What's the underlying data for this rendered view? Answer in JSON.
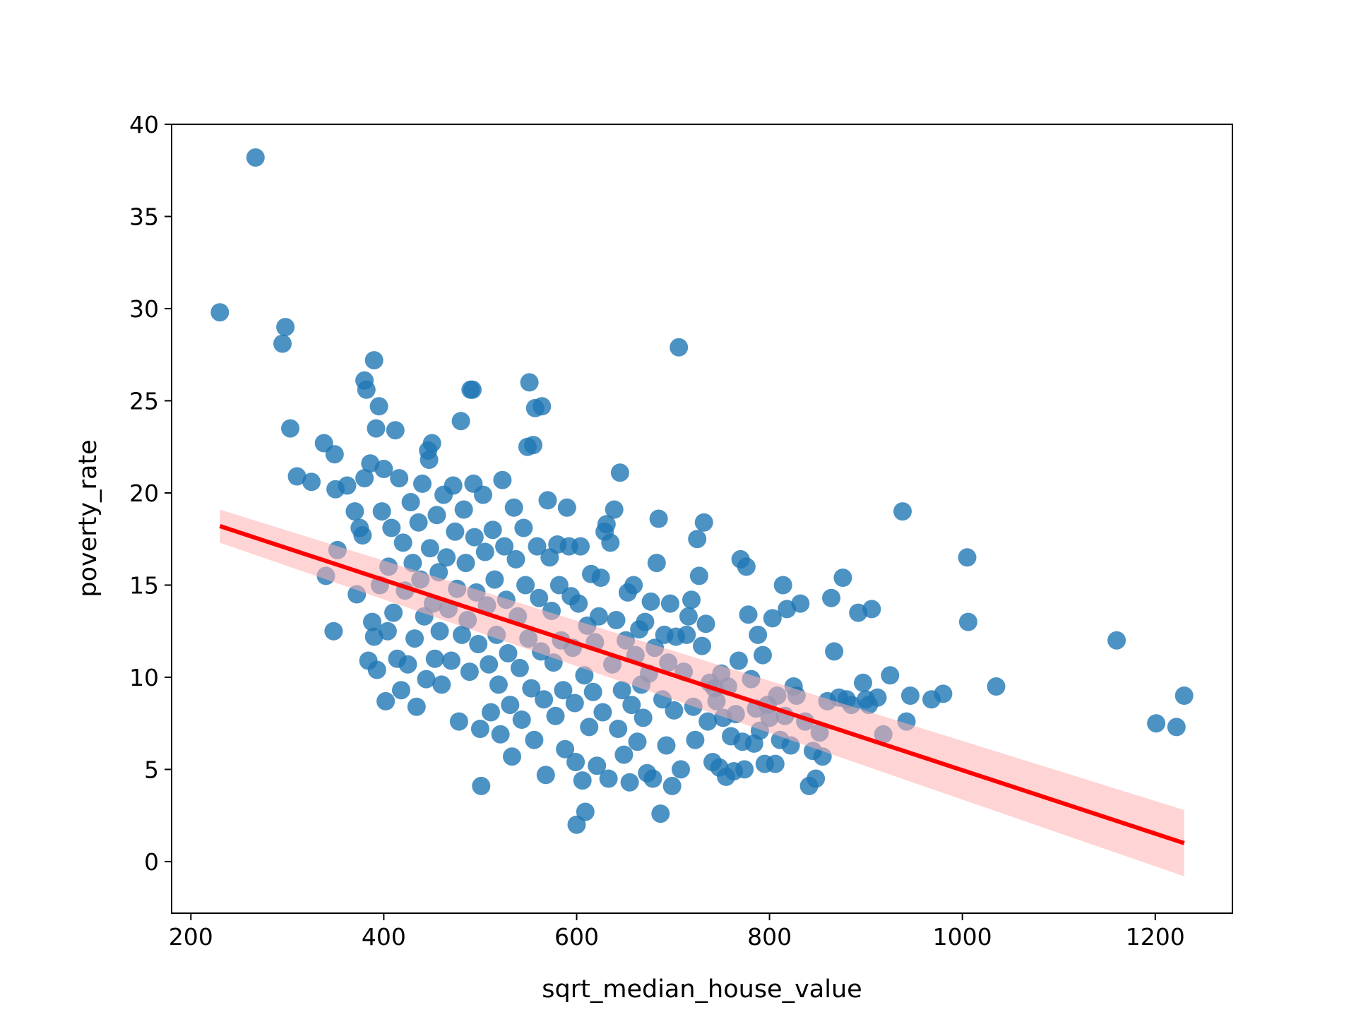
{
  "chart_data": {
    "type": "scatter",
    "title": "",
    "xlabel": "sqrt_median_house_value",
    "ylabel": "poverty_rate",
    "xlim": [
      180,
      1280
    ],
    "ylim": [
      -2.8,
      40
    ],
    "xticks": [
      200,
      400,
      600,
      800,
      1000,
      1200
    ],
    "yticks": [
      0,
      5,
      10,
      15,
      20,
      25,
      30,
      35,
      40
    ],
    "grid": false,
    "legend": "none",
    "colors": {
      "points": "#1f77b4",
      "regression_line": "#ff0000",
      "confidence_band": "#ffb0b0"
    },
    "regression": {
      "x": [
        230,
        1230
      ],
      "y": [
        18.2,
        1.0
      ],
      "ci_lower": [
        17.3,
        -0.8
      ],
      "ci_upper": [
        19.1,
        2.8
      ]
    },
    "points": [
      [
        230,
        29.8
      ],
      [
        267,
        38.2
      ],
      [
        295,
        28.1
      ],
      [
        298,
        29.0
      ],
      [
        303,
        23.5
      ],
      [
        310,
        20.9
      ],
      [
        325,
        20.6
      ],
      [
        338,
        22.7
      ],
      [
        340,
        15.5
      ],
      [
        348,
        12.5
      ],
      [
        349,
        22.1
      ],
      [
        350,
        20.2
      ],
      [
        352,
        16.9
      ],
      [
        362,
        20.4
      ],
      [
        370,
        19.0
      ],
      [
        372,
        14.5
      ],
      [
        375,
        18.1
      ],
      [
        378,
        17.7
      ],
      [
        380,
        26.1
      ],
      [
        380,
        20.8
      ],
      [
        382,
        25.6
      ],
      [
        384,
        10.9
      ],
      [
        386,
        21.6
      ],
      [
        388,
        13.0
      ],
      [
        390,
        27.2
      ],
      [
        390,
        12.2
      ],
      [
        392,
        23.5
      ],
      [
        393,
        10.4
      ],
      [
        395,
        24.7
      ],
      [
        396,
        15.0
      ],
      [
        398,
        19.0
      ],
      [
        400,
        21.3
      ],
      [
        402,
        8.7
      ],
      [
        404,
        12.5
      ],
      [
        405,
        16.0
      ],
      [
        408,
        18.1
      ],
      [
        410,
        13.5
      ],
      [
        412,
        23.4
      ],
      [
        414,
        11.0
      ],
      [
        416,
        20.8
      ],
      [
        418,
        9.3
      ],
      [
        420,
        17.3
      ],
      [
        422,
        14.7
      ],
      [
        425,
        10.7
      ],
      [
        428,
        19.5
      ],
      [
        430,
        16.2
      ],
      [
        432,
        12.1
      ],
      [
        434,
        8.4
      ],
      [
        436,
        18.4
      ],
      [
        438,
        15.3
      ],
      [
        440,
        20.5
      ],
      [
        442,
        13.3
      ],
      [
        444,
        9.9
      ],
      [
        446,
        22.3
      ],
      [
        447,
        21.8
      ],
      [
        448,
        17.0
      ],
      [
        450,
        22.7
      ],
      [
        451,
        14.0
      ],
      [
        453,
        11.0
      ],
      [
        455,
        18.8
      ],
      [
        457,
        15.7
      ],
      [
        458,
        12.5
      ],
      [
        460,
        9.6
      ],
      [
        462,
        19.9
      ],
      [
        465,
        16.5
      ],
      [
        467,
        13.7
      ],
      [
        470,
        10.9
      ],
      [
        472,
        20.4
      ],
      [
        474,
        17.9
      ],
      [
        476,
        14.8
      ],
      [
        478,
        7.6
      ],
      [
        480,
        23.9
      ],
      [
        481,
        12.3
      ],
      [
        483,
        19.1
      ],
      [
        485,
        16.2
      ],
      [
        487,
        13.1
      ],
      [
        489,
        10.3
      ],
      [
        490,
        25.6
      ],
      [
        492,
        25.6
      ],
      [
        493,
        20.5
      ],
      [
        494,
        17.6
      ],
      [
        496,
        14.6
      ],
      [
        498,
        11.8
      ],
      [
        500,
        7.2
      ],
      [
        501,
        4.1
      ],
      [
        503,
        19.9
      ],
      [
        505,
        16.8
      ],
      [
        507,
        13.9
      ],
      [
        509,
        10.7
      ],
      [
        511,
        8.1
      ],
      [
        513,
        18.0
      ],
      [
        515,
        15.3
      ],
      [
        517,
        12.3
      ],
      [
        519,
        9.6
      ],
      [
        521,
        6.9
      ],
      [
        523,
        20.7
      ],
      [
        525,
        17.1
      ],
      [
        527,
        14.2
      ],
      [
        529,
        11.3
      ],
      [
        531,
        8.5
      ],
      [
        533,
        5.7
      ],
      [
        535,
        19.2
      ],
      [
        537,
        16.4
      ],
      [
        539,
        13.3
      ],
      [
        541,
        10.5
      ],
      [
        543,
        7.7
      ],
      [
        545,
        18.1
      ],
      [
        547,
        15.0
      ],
      [
        549,
        22.5
      ],
      [
        550,
        12.1
      ],
      [
        551,
        26.0
      ],
      [
        553,
        9.4
      ],
      [
        555,
        22.6
      ],
      [
        556,
        6.6
      ],
      [
        557,
        24.6
      ],
      [
        559,
        17.1
      ],
      [
        561,
        14.3
      ],
      [
        563,
        11.4
      ],
      [
        564,
        24.7
      ],
      [
        566,
        8.8
      ],
      [
        568,
        4.7
      ],
      [
        570,
        19.6
      ],
      [
        572,
        16.5
      ],
      [
        574,
        13.6
      ],
      [
        576,
        10.8
      ],
      [
        578,
        7.9
      ],
      [
        580,
        17.2
      ],
      [
        582,
        15.0
      ],
      [
        584,
        12.0
      ],
      [
        586,
        9.3
      ],
      [
        588,
        6.1
      ],
      [
        590,
        19.2
      ],
      [
        592,
        17.1
      ],
      [
        594,
        14.4
      ],
      [
        596,
        11.6
      ],
      [
        598,
        8.6
      ],
      [
        599,
        5.4
      ],
      [
        600,
        2.0
      ],
      [
        602,
        14.0
      ],
      [
        604,
        17.1
      ],
      [
        606,
        4.4
      ],
      [
        608,
        10.1
      ],
      [
        609,
        2.7
      ],
      [
        611,
        12.8
      ],
      [
        613,
        7.3
      ],
      [
        615,
        15.6
      ],
      [
        617,
        9.2
      ],
      [
        619,
        11.9
      ],
      [
        621,
        5.2
      ],
      [
        623,
        13.3
      ],
      [
        625,
        15.4
      ],
      [
        627,
        8.1
      ],
      [
        629,
        17.9
      ],
      [
        631,
        18.3
      ],
      [
        633,
        4.5
      ],
      [
        635,
        17.3
      ],
      [
        637,
        10.7
      ],
      [
        639,
        19.1
      ],
      [
        641,
        13.1
      ],
      [
        643,
        7.2
      ],
      [
        645,
        21.1
      ],
      [
        647,
        9.3
      ],
      [
        649,
        5.8
      ],
      [
        651,
        12.0
      ],
      [
        653,
        14.6
      ],
      [
        655,
        4.3
      ],
      [
        657,
        8.5
      ],
      [
        659,
        15.0
      ],
      [
        661,
        11.2
      ],
      [
        663,
        6.5
      ],
      [
        665,
        12.6
      ],
      [
        667,
        9.6
      ],
      [
        669,
        7.8
      ],
      [
        671,
        13.0
      ],
      [
        673,
        4.8
      ],
      [
        675,
        10.2
      ],
      [
        677,
        14.1
      ],
      [
        679,
        4.5
      ],
      [
        681,
        11.6
      ],
      [
        683,
        16.2
      ],
      [
        685,
        18.6
      ],
      [
        687,
        2.6
      ],
      [
        689,
        8.8
      ],
      [
        691,
        12.3
      ],
      [
        693,
        6.3
      ],
      [
        695,
        10.8
      ],
      [
        697,
        14.0
      ],
      [
        699,
        4.1
      ],
      [
        701,
        8.2
      ],
      [
        703,
        12.2
      ],
      [
        706,
        27.9
      ],
      [
        708,
        5.0
      ],
      [
        711,
        10.3
      ],
      [
        714,
        12.3
      ],
      [
        716,
        13.3
      ],
      [
        719,
        14.2
      ],
      [
        721,
        8.4
      ],
      [
        723,
        6.6
      ],
      [
        725,
        17.5
      ],
      [
        727,
        15.5
      ],
      [
        730,
        11.7
      ],
      [
        732,
        18.4
      ],
      [
        734,
        12.9
      ],
      [
        736,
        7.6
      ],
      [
        738,
        9.7
      ],
      [
        741,
        5.4
      ],
      [
        743,
        9.4
      ],
      [
        745,
        8.7
      ],
      [
        748,
        5.1
      ],
      [
        750,
        10.2
      ],
      [
        752,
        7.8
      ],
      [
        755,
        4.6
      ],
      [
        757,
        9.5
      ],
      [
        760,
        6.8
      ],
      [
        763,
        4.9
      ],
      [
        765,
        8.0
      ],
      [
        768,
        10.9
      ],
      [
        770,
        16.4
      ],
      [
        772,
        6.5
      ],
      [
        774,
        5.0
      ],
      [
        776,
        16.0
      ],
      [
        778,
        13.4
      ],
      [
        781,
        9.9
      ],
      [
        784,
        6.4
      ],
      [
        786,
        8.3
      ],
      [
        788,
        12.3
      ],
      [
        790,
        7.1
      ],
      [
        793,
        11.2
      ],
      [
        795,
        5.3
      ],
      [
        798,
        8.5
      ],
      [
        800,
        7.8
      ],
      [
        803,
        13.2
      ],
      [
        806,
        5.3
      ],
      [
        808,
        9.0
      ],
      [
        811,
        6.6
      ],
      [
        814,
        15.0
      ],
      [
        816,
        7.9
      ],
      [
        818,
        13.7
      ],
      [
        822,
        6.3
      ],
      [
        825,
        9.5
      ],
      [
        828,
        9.0
      ],
      [
        832,
        14.0
      ],
      [
        837,
        7.6
      ],
      [
        841,
        4.1
      ],
      [
        845,
        6.0
      ],
      [
        848,
        4.5
      ],
      [
        852,
        7.0
      ],
      [
        855,
        5.7
      ],
      [
        860,
        8.7
      ],
      [
        864,
        14.3
      ],
      [
        867,
        11.4
      ],
      [
        872,
        8.9
      ],
      [
        876,
        15.4
      ],
      [
        880,
        8.8
      ],
      [
        885,
        8.5
      ],
      [
        892,
        13.5
      ],
      [
        897,
        9.7
      ],
      [
        900,
        8.8
      ],
      [
        903,
        8.5
      ],
      [
        906,
        13.7
      ],
      [
        912,
        8.9
      ],
      [
        918,
        6.9
      ],
      [
        925,
        10.1
      ],
      [
        938,
        19.0
      ],
      [
        942,
        7.6
      ],
      [
        946,
        9.0
      ],
      [
        968,
        8.8
      ],
      [
        980,
        9.1
      ],
      [
        1005,
        16.5
      ],
      [
        1006,
        13.0
      ],
      [
        1035,
        9.5
      ],
      [
        1160,
        12.0
      ],
      [
        1201,
        7.5
      ],
      [
        1222,
        7.3
      ],
      [
        1230,
        9.0
      ]
    ]
  }
}
